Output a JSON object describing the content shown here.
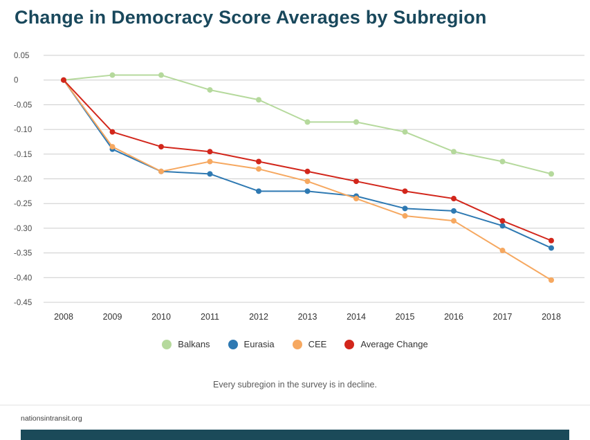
{
  "header": {
    "title": "Change in Democracy Score Averages by Subregion"
  },
  "caption": "Every subregion in the survey is in decline.",
  "footer": {
    "site": "nationsintransit.org"
  },
  "colors": {
    "title": "#19485c",
    "grid": "#cccccc",
    "axis_text": "#4a4a4a",
    "footer_bar": "#1b4a59"
  },
  "chart_data": {
    "type": "line",
    "title": "Change in Democracy Score Averages by Subregion",
    "categories": [
      "2008",
      "2009",
      "2010",
      "2011",
      "2012",
      "2013",
      "2014",
      "2015",
      "2016",
      "2017",
      "2018"
    ],
    "xlabel": "",
    "ylabel": "",
    "ylim": [
      -0.45,
      0.05
    ],
    "grid": true,
    "legend_position": "bottom",
    "yticks": [
      0.05,
      0,
      -0.05,
      -0.1,
      -0.15,
      -0.2,
      -0.25,
      -0.3,
      -0.35,
      -0.4,
      -0.45
    ],
    "ytick_labels": [
      "0.05",
      "0",
      "-0.05",
      "-0.10",
      "-0.15",
      "-0.20",
      "-0.25",
      "-0.30",
      "-0.35",
      "-0.40",
      "-0.45"
    ],
    "series": [
      {
        "name": "Balkans",
        "color": "#b5d99c",
        "values": [
          0,
          0.01,
          0.01,
          -0.02,
          -0.04,
          -0.085,
          -0.085,
          -0.105,
          -0.145,
          -0.165,
          -0.19
        ]
      },
      {
        "name": "Eurasia",
        "color": "#2e79b2",
        "values": [
          0,
          -0.14,
          -0.185,
          -0.19,
          -0.225,
          -0.225,
          -0.235,
          -0.26,
          -0.265,
          -0.295,
          -0.34
        ]
      },
      {
        "name": "CEE",
        "color": "#f6a860",
        "values": [
          0,
          -0.135,
          -0.185,
          -0.165,
          -0.18,
          -0.205,
          -0.24,
          -0.275,
          -0.285,
          -0.345,
          -0.405
        ]
      },
      {
        "name": "Average Change",
        "color": "#d2261b",
        "values": [
          0,
          -0.105,
          -0.135,
          -0.145,
          -0.165,
          -0.185,
          -0.205,
          -0.225,
          -0.24,
          -0.285,
          -0.325
        ]
      }
    ]
  }
}
